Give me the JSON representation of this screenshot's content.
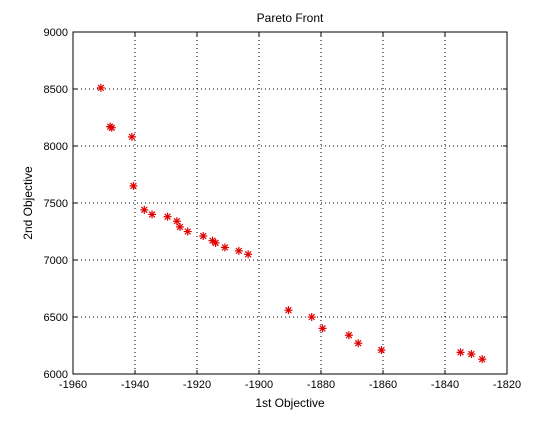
{
  "chart_data": {
    "type": "scatter",
    "title": "Pareto Front",
    "xlabel": "1st Objective",
    "ylabel": "2nd Objective",
    "xlim": [
      -1960,
      -1820
    ],
    "ylim": [
      6000,
      9000
    ],
    "xticks": [
      -1960,
      -1940,
      -1920,
      -1900,
      -1880,
      -1860,
      -1840,
      -1820
    ],
    "yticks": [
      6000,
      6500,
      7000,
      7500,
      8000,
      8500,
      9000
    ],
    "grid": true,
    "marker": "asterisk",
    "marker_color": "#e00000",
    "series": [
      {
        "x": [
          -1951,
          -1948,
          -1947.5,
          -1941,
          -1940.5,
          -1937,
          -1934.5,
          -1929.5,
          -1926.5,
          -1925.5,
          -1923,
          -1918,
          -1915,
          -1914,
          -1911,
          -1906.5,
          -1903.5,
          -1890.5,
          -1883,
          -1879.5,
          -1871,
          -1868,
          -1860.5,
          -1835,
          -1831.5,
          -1828
        ],
        "y": [
          8510,
          8170,
          8160,
          8080,
          7650,
          7440,
          7400,
          7380,
          7340,
          7290,
          7250,
          7210,
          7170,
          7150,
          7110,
          7080,
          7050,
          6560,
          6500,
          6400,
          6340,
          6270,
          6210,
          6190,
          6175,
          6130
        ]
      }
    ]
  }
}
